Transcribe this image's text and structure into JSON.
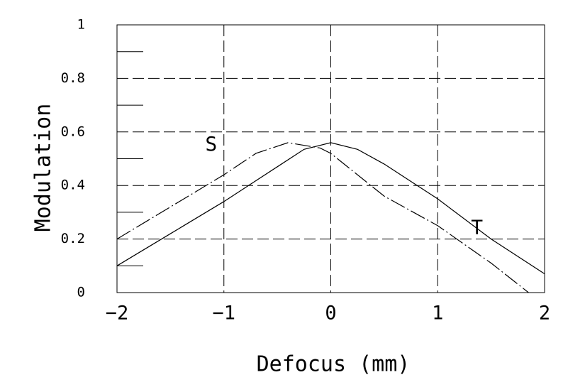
{
  "chart_data": {
    "type": "line",
    "xlabel": "Defocus (mm)",
    "ylabel": "Modulation",
    "xlim": [
      -2,
      2
    ],
    "ylim": [
      0,
      1
    ],
    "xticks": [
      {
        "value": -2,
        "label": "−2"
      },
      {
        "value": -1,
        "label": "−1"
      },
      0,
      1,
      2
    ],
    "yticks": [
      0,
      0.2,
      0.4,
      0.6,
      0.8,
      1
    ],
    "yminor_ticks": [
      0.1,
      0.3,
      0.5,
      0.7,
      0.9
    ],
    "grid": true,
    "color": "#000000",
    "series": [
      {
        "name": "S",
        "color": "#000000",
        "style": "dashdot",
        "x": [
          -2,
          -1.5,
          -1,
          -0.7,
          -0.4,
          -0.1,
          0,
          0.5,
          1,
          1.5,
          1.85
        ],
        "values": [
          0.2,
          0.32,
          0.44,
          0.52,
          0.56,
          0.54,
          0.52,
          0.36,
          0.25,
          0.11,
          0
        ]
      },
      {
        "name": "T",
        "color": "#000000",
        "style": "solid",
        "x": [
          -2,
          -1.5,
          -1,
          -0.5,
          -0.25,
          0,
          0.25,
          0.5,
          1,
          1.5,
          2
        ],
        "values": [
          0.1,
          0.22,
          0.34,
          0.47,
          0.535,
          0.56,
          0.535,
          0.48,
          0.35,
          0.2,
          0.07
        ]
      }
    ]
  }
}
